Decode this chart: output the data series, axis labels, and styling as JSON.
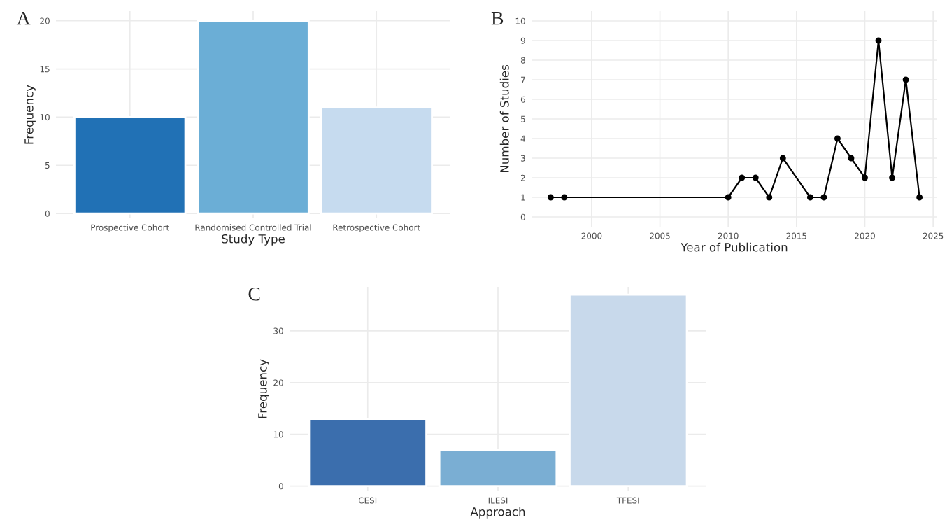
{
  "chart_data": [
    {
      "type": "bar",
      "title": "A",
      "xlabel": "Study Type",
      "ylabel": "Frequency",
      "categories": [
        "Prospective Cohort",
        "Randomised Controlled Trial",
        "Retrospective Cohort"
      ],
      "values": [
        10,
        20,
        11
      ],
      "colors": [
        "#2171b5",
        "#6baed6",
        "#c6dbef"
      ],
      "ylim": [
        -0.5,
        21
      ],
      "yticks": [
        0,
        5,
        10,
        15,
        20
      ],
      "grid": true,
      "legend": false
    },
    {
      "type": "line",
      "title": "B",
      "xlabel": "Year of Publication",
      "ylabel": "Number of Studies",
      "x": [
        1997,
        1998,
        2010,
        2011,
        2012,
        2013,
        2014,
        2016,
        2017,
        2018,
        2019,
        2020,
        2021,
        2022,
        2023,
        2024
      ],
      "values": [
        1,
        1,
        1,
        2,
        2,
        1,
        3,
        1,
        1,
        4,
        3,
        2,
        9,
        2,
        7,
        1
      ],
      "color": "#000000",
      "marker": "circle",
      "line_style": "solid",
      "xlim": [
        1995.6,
        2025.3
      ],
      "xticks": [
        2000,
        2005,
        2010,
        2015,
        2020,
        2025
      ],
      "ylim": [
        -0.5,
        10.5
      ],
      "yticks": [
        0,
        1,
        2,
        3,
        4,
        5,
        6,
        7,
        8,
        9,
        10
      ],
      "grid": true,
      "legend": false
    },
    {
      "type": "bar",
      "title": "C",
      "xlabel": "Approach",
      "ylabel": "Frequency",
      "categories": [
        "CESI",
        "ILESI",
        "TFESI"
      ],
      "values": [
        13,
        7,
        37
      ],
      "colors": [
        "#3b6ead",
        "#7aaed3",
        "#c8d9eb"
      ],
      "ylim": [
        -1,
        38.5
      ],
      "yticks": [
        0,
        10,
        20,
        30
      ],
      "grid": true,
      "legend": false
    }
  ]
}
